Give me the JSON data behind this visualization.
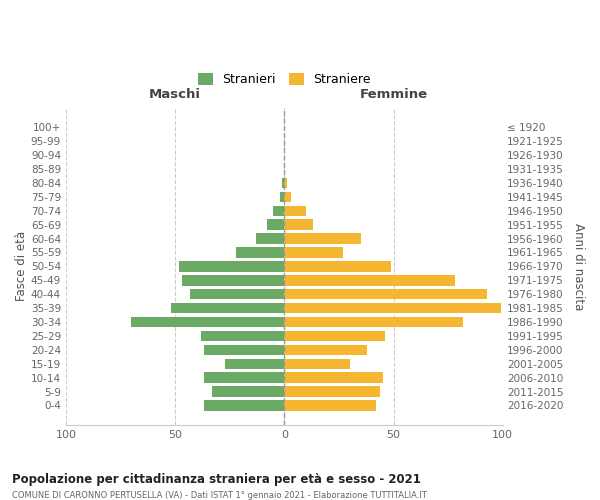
{
  "age_groups": [
    "100+",
    "95-99",
    "90-94",
    "85-89",
    "80-84",
    "75-79",
    "70-74",
    "65-69",
    "60-64",
    "55-59",
    "50-54",
    "45-49",
    "40-44",
    "35-39",
    "30-34",
    "25-29",
    "20-24",
    "15-19",
    "10-14",
    "5-9",
    "0-4"
  ],
  "birth_years": [
    "≤ 1920",
    "1921-1925",
    "1926-1930",
    "1931-1935",
    "1936-1940",
    "1941-1945",
    "1946-1950",
    "1951-1955",
    "1956-1960",
    "1961-1965",
    "1966-1970",
    "1971-1975",
    "1976-1980",
    "1981-1985",
    "1986-1990",
    "1991-1995",
    "1996-2000",
    "2001-2005",
    "2006-2010",
    "2011-2015",
    "2016-2020"
  ],
  "maschi": [
    0,
    0,
    0,
    0,
    1,
    2,
    5,
    8,
    13,
    22,
    48,
    47,
    43,
    52,
    70,
    38,
    37,
    27,
    37,
    33,
    37
  ],
  "femmine": [
    0,
    0,
    0,
    0,
    1,
    3,
    10,
    13,
    35,
    27,
    49,
    78,
    93,
    99,
    82,
    46,
    38,
    30,
    45,
    44,
    42
  ],
  "male_color": "#6aaa64",
  "female_color": "#f5b731",
  "background_color": "#ffffff",
  "grid_color": "#cccccc",
  "title": "Popolazione per cittadinanza straniera per età e sesso - 2021",
  "subtitle": "COMUNE DI CARONNO PERTUSELLA (VA) - Dati ISTAT 1° gennaio 2021 - Elaborazione TUTTITALIA.IT",
  "label_maschi": "Maschi",
  "label_femmine": "Femmine",
  "ylabel_left": "Fasce di età",
  "ylabel_right": "Anni di nascita",
  "legend_male": "Stranieri",
  "legend_female": "Straniere",
  "xlim": 100,
  "bar_height": 0.75
}
